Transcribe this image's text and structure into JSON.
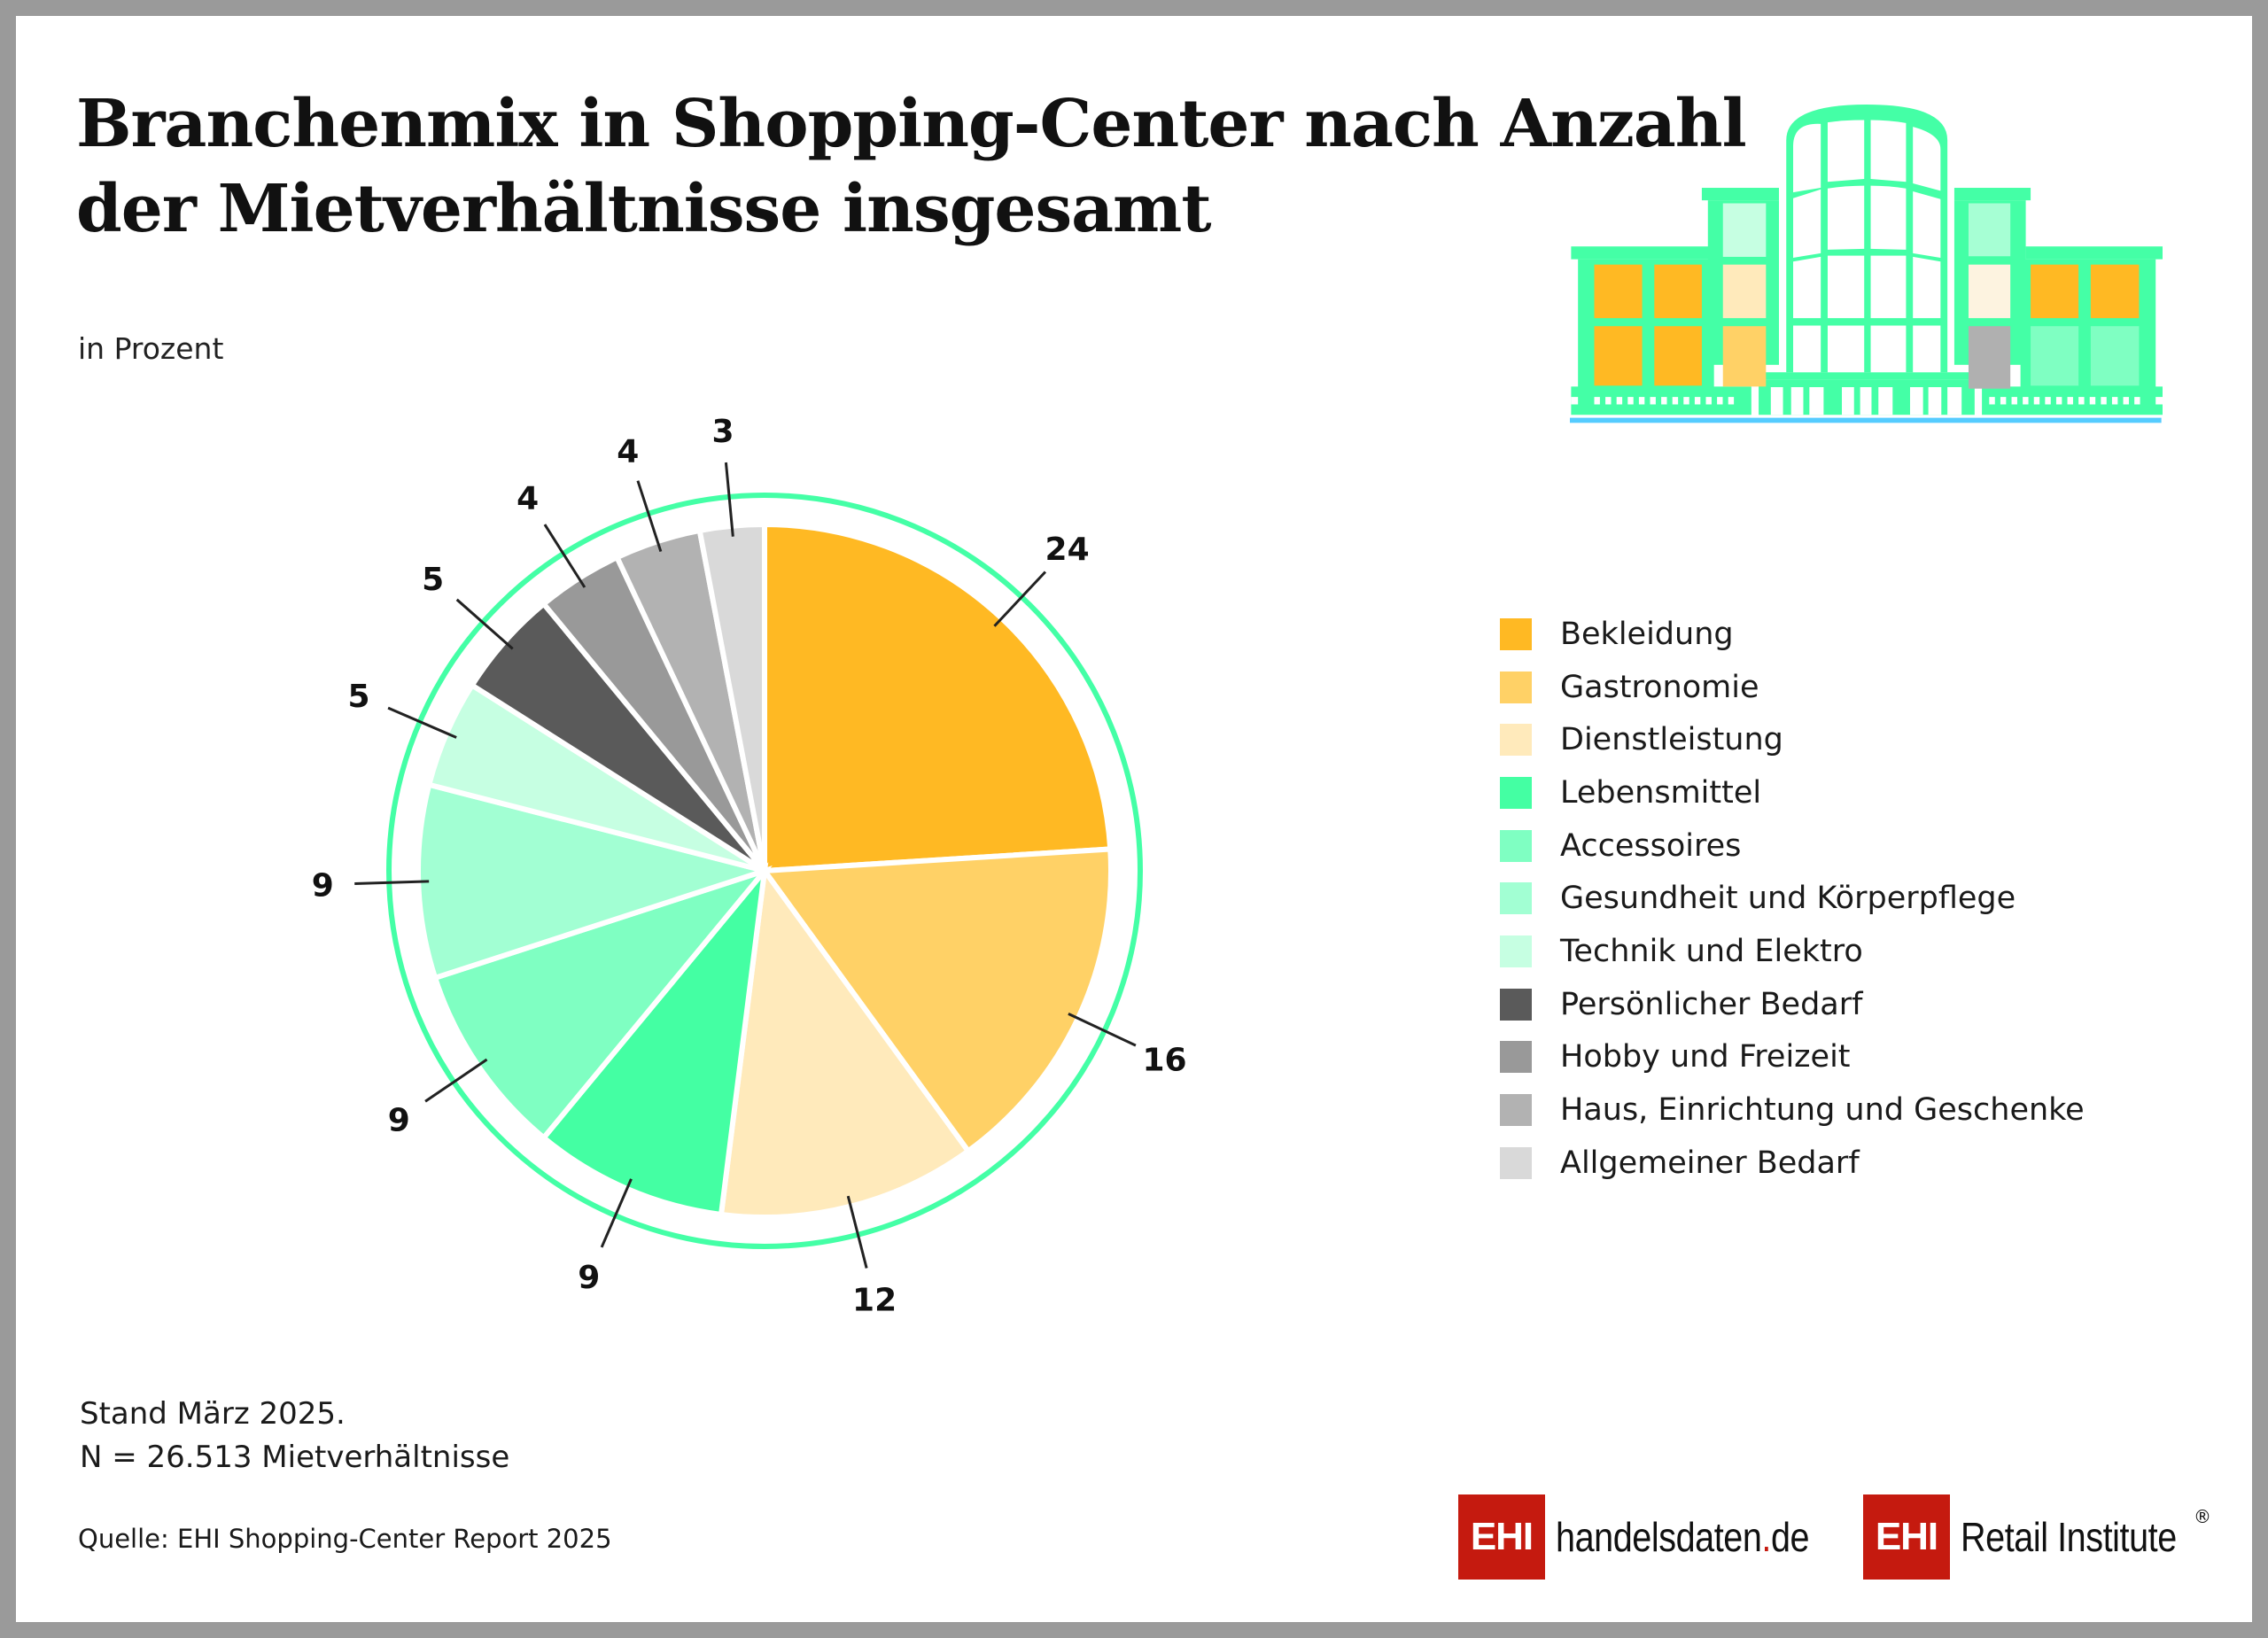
{
  "title_line1": "Branchenmix in Shopping-Center nach Anzahl",
  "title_line2": "der Mietverhältnisse insgesamt",
  "subtitle": "in Prozent",
  "chart_data": {
    "type": "pie",
    "title": "Branchenmix in Shopping-Center nach Anzahl der Mietverhältnisse insgesamt",
    "unit": "in Prozent",
    "start": "12 o'clock, clockwise",
    "legend_position": "right",
    "categories": [
      "Bekleidung",
      "Gastronomie",
      "Dienstleistung",
      "Lebensmittel",
      "Accessoires",
      "Gesundheit und Körperpflege",
      "Technik und Elektro",
      "Persönlicher Bedarf",
      "Hobby und Freizeit",
      "Haus, Einrichtung und Geschenke",
      "Allgemeiner Bedarf"
    ],
    "values": [
      24,
      16,
      12,
      9,
      9,
      9,
      5,
      5,
      4,
      4,
      3
    ],
    "colors": [
      "#ffb923",
      "#ffd166",
      "#ffeabb",
      "#44ffa3",
      "#7fffc2",
      "#a2ffd3",
      "#c6ffe2",
      "#5a5a5a",
      "#999999",
      "#b2b2b2",
      "#d9d9d9"
    ],
    "ring_color": "#44ffa6"
  },
  "note_line1": "Stand März 2025.",
  "note_line2": "N = 26.513 Mietverhältnisse",
  "source": "Quelle: EHI Shopping-Center Report 2025",
  "logos": {
    "ehi": "EHI",
    "handelsdaten_a": "handelsdaten",
    "handelsdaten_dot": ".",
    "handelsdaten_b": "de",
    "retail": "Retail Institute",
    "registered": "®"
  }
}
